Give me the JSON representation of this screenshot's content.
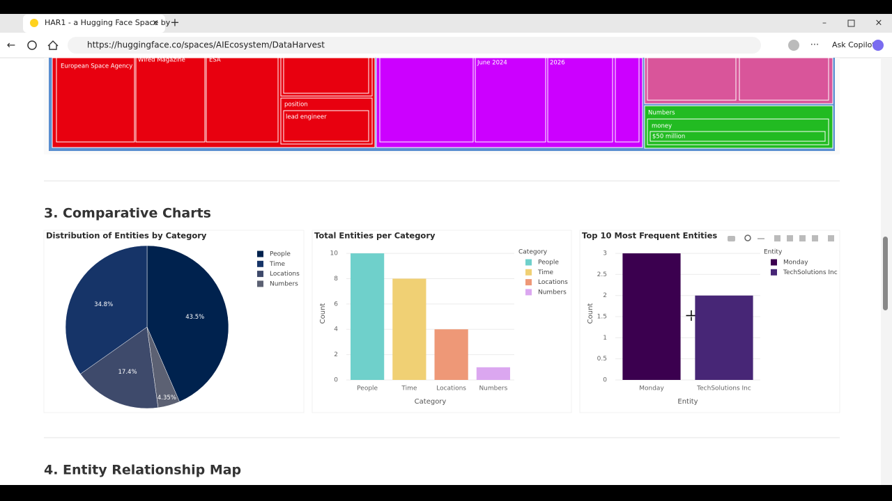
{
  "browser": {
    "tab_title": "HAR1 - a Hugging Face Space by",
    "url": "https://huggingface.co/spaces/AIEcosystem/DataHarvest",
    "copilot": "Ask Copilot"
  },
  "treemap": {
    "labels": [
      "European Space Agency",
      "Wired Magazine",
      "ESA",
      "position",
      "lead engineer",
      "June 2024",
      "2026",
      "Numbers",
      "money",
      "$50 million"
    ]
  },
  "sections": [
    "3. Comparative Charts",
    "4. Entity Relationship Map"
  ],
  "chart_data": [
    {
      "type": "pie",
      "title": "Distribution of Entities by Category",
      "categories": [
        "People",
        "Time",
        "Locations",
        "Numbers"
      ],
      "values": [
        43.5,
        34.8,
        17.4,
        4.35
      ],
      "value_labels": [
        "43.5%",
        "34.8%",
        "17.4%",
        "4.35%"
      ],
      "colors": [
        "#00224e",
        "#163468",
        "#3e4a6b",
        "#5c6173"
      ],
      "legend": "top-right"
    },
    {
      "type": "bar",
      "title": "Total Entities per Category",
      "categories": [
        "People",
        "Time",
        "Locations",
        "Numbers"
      ],
      "values": [
        10,
        8,
        4,
        1
      ],
      "colors": [
        "#6fd0cb",
        "#f0d074",
        "#ee9877",
        "#dba7f0"
      ],
      "xlabel": "Category",
      "ylabel": "Count",
      "legend_title": "Category",
      "legend": "top-right",
      "ylim": [
        0,
        10.5
      ],
      "yticks": [
        0,
        2,
        4,
        6,
        8,
        10
      ],
      "grid": true
    },
    {
      "type": "bar",
      "title": "Top 10 Most Frequent Entities",
      "categories": [
        "Monday",
        "TechSolutions Inc"
      ],
      "values": [
        3,
        2
      ],
      "colors": [
        "#3b004f",
        "#472676"
      ],
      "xlabel": "Entity",
      "ylabel": "Count",
      "legend_title": "Entity",
      "legend": "top-right",
      "ylim": [
        0,
        3.15
      ],
      "yticks": [
        0,
        0.5,
        1,
        1.5,
        2,
        2.5,
        3
      ],
      "grid": true
    }
  ]
}
